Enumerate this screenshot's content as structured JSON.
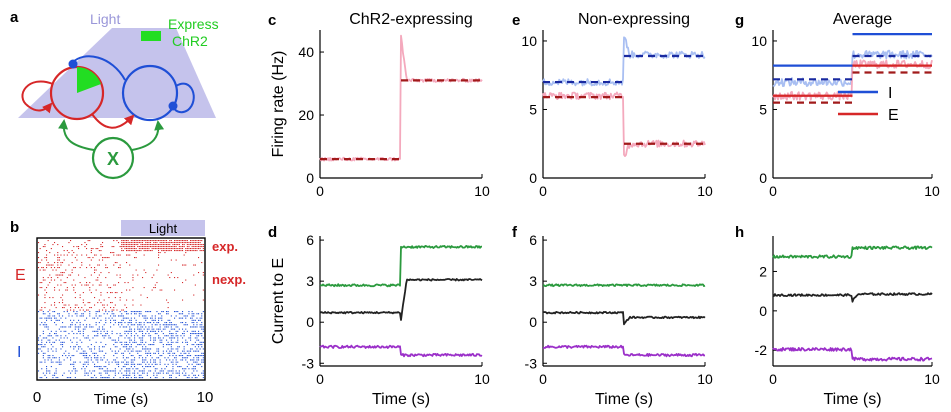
{
  "colors": {
    "excit": "#d62728",
    "inhib": "#1f4fd6",
    "pink": "#f4a9bd",
    "lightblue": "#a9bff2",
    "dashred": "#a11a1a",
    "dashblue": "#1a2aa0",
    "green": "#2b9a3e",
    "black": "#222222",
    "purple": "#9b30c9",
    "brightgreen": "#22dd22",
    "lavender": "#c5c3ec",
    "lightpink": "#f6b7bf"
  },
  "panel_a": {
    "letter": "a",
    "light_label": "Light",
    "express_label_1": "Express",
    "express_label_2": "ChR2",
    "x_label": "X"
  },
  "panel_b": {
    "letter": "b",
    "light_label": "Light",
    "e_label": "E",
    "i_label": "I",
    "exp_label": "exp.",
    "nexp_label": "nexp.",
    "xlabel": "Time (s)",
    "xticks": [
      "0",
      "10"
    ]
  },
  "panel_letters": {
    "c": "c",
    "d": "d",
    "e": "e",
    "f": "f",
    "g": "g",
    "h": "h"
  },
  "chart_data": [
    {
      "id": "c",
      "type": "line",
      "title": "ChR2-expressing",
      "ylabel": "Firing rate (Hz)",
      "xlabel": "",
      "xlim": [
        0,
        10
      ],
      "ylim": [
        0,
        47
      ],
      "xticks": [
        0,
        10
      ],
      "yticks": [
        0,
        20,
        40
      ],
      "series": [
        {
          "color_key": "pink",
          "style": "noisy",
          "before": 6,
          "after": 31,
          "peak": 45,
          "dip": null,
          "noise": 0.5
        },
        {
          "color_key": "dashred",
          "style": "dashed",
          "before": 6,
          "after": 31
        }
      ]
    },
    {
      "id": "e",
      "type": "line",
      "title": "Non-expressing",
      "ylabel": "",
      "xlabel": "",
      "xlim": [
        0,
        10
      ],
      "ylim": [
        0,
        10.8
      ],
      "xticks": [
        0,
        10
      ],
      "yticks": [
        0,
        5,
        10
      ],
      "series": [
        {
          "color_key": "lightblue",
          "style": "noisy",
          "before": 7,
          "after": 9,
          "peak": 10.4,
          "dip": null,
          "noise": 0.25
        },
        {
          "color_key": "pink",
          "style": "noisy",
          "before": 6,
          "after": 2.5,
          "peak": null,
          "dip": 1.6,
          "noise": 0.25
        },
        {
          "color_key": "dashblue",
          "style": "dashed",
          "before": 7,
          "after": 8.9
        },
        {
          "color_key": "dashred",
          "style": "dashed",
          "before": 5.9,
          "after": 2.5
        }
      ]
    },
    {
      "id": "g",
      "type": "line",
      "title": "Average",
      "ylabel": "",
      "xlabel": "",
      "xlim": [
        0,
        10
      ],
      "ylim": [
        0,
        10.8
      ],
      "xticks": [
        0,
        10
      ],
      "yticks": [
        0,
        5,
        10
      ],
      "legend_position": "right",
      "legend": [
        {
          "label": "I",
          "color_key": "inhib"
        },
        {
          "label": "E",
          "color_key": "excit"
        }
      ],
      "series": [
        {
          "color_key": "lightblue",
          "style": "noisy",
          "before": 7,
          "after": 9,
          "peak": null,
          "dip": null,
          "noise": 0.3
        },
        {
          "color_key": "pink",
          "style": "noisy",
          "before": 6,
          "after": 8.3,
          "peak": null,
          "dip": null,
          "noise": 0.3
        },
        {
          "color_key": "inhib",
          "style": "solid",
          "before": 8.2,
          "after": 10.5
        },
        {
          "color_key": "excit",
          "style": "solid",
          "before": 6,
          "after": 8.2
        },
        {
          "color_key": "dashblue",
          "style": "dashed",
          "before": 7.2,
          "after": 8.9
        },
        {
          "color_key": "dashred",
          "style": "dashed",
          "before": 5.5,
          "after": 7.7
        }
      ]
    },
    {
      "id": "d",
      "type": "line",
      "title": "",
      "ylabel": "Current to E",
      "xlabel": "Time (s)",
      "xlim": [
        0,
        10
      ],
      "ylim": [
        -3.2,
        6.3
      ],
      "xticks": [
        0,
        10
      ],
      "yticks": [
        -3,
        0,
        3,
        6
      ],
      "series": [
        {
          "color_key": "green",
          "style": "noisy",
          "before": 2.7,
          "after": 5.5,
          "noise": 0.08
        },
        {
          "color_key": "black",
          "style": "noisy",
          "before": 0.7,
          "after": 3.1,
          "noise": 0.06,
          "dip": 0.2
        },
        {
          "color_key": "purple",
          "style": "noisy",
          "before": -1.8,
          "after": -2.4,
          "noise": 0.09
        }
      ]
    },
    {
      "id": "f",
      "type": "line",
      "title": "",
      "ylabel": "",
      "xlabel": "Time (s)",
      "xlim": [
        0,
        10
      ],
      "ylim": [
        -3.2,
        6.3
      ],
      "xticks": [
        0,
        10
      ],
      "yticks": [
        -3,
        0,
        3,
        6
      ],
      "series": [
        {
          "color_key": "green",
          "style": "noisy",
          "before": 2.7,
          "after": 2.7,
          "noise": 0.07
        },
        {
          "color_key": "black",
          "style": "noisy",
          "before": 0.7,
          "after": 0.35,
          "noise": 0.06,
          "dip": -0.1
        },
        {
          "color_key": "purple",
          "style": "noisy",
          "before": -1.8,
          "after": -2.4,
          "noise": 0.09
        }
      ]
    },
    {
      "id": "h",
      "type": "line",
      "title": "",
      "ylabel": "",
      "xlabel": "Time (s)",
      "xlim": [
        0,
        10
      ],
      "ylim": [
        -2.8,
        3.8
      ],
      "xticks": [
        0,
        10
      ],
      "yticks": [
        -2,
        0,
        2
      ],
      "series": [
        {
          "color_key": "green",
          "style": "noisy",
          "before": 2.75,
          "after": 3.2,
          "noise": 0.07
        },
        {
          "color_key": "black",
          "style": "noisy",
          "before": 0.8,
          "after": 0.85,
          "noise": 0.05,
          "dip": 0.5
        },
        {
          "color_key": "purple",
          "style": "noisy",
          "before": -1.95,
          "after": -2.45,
          "noise": 0.08
        }
      ]
    }
  ]
}
